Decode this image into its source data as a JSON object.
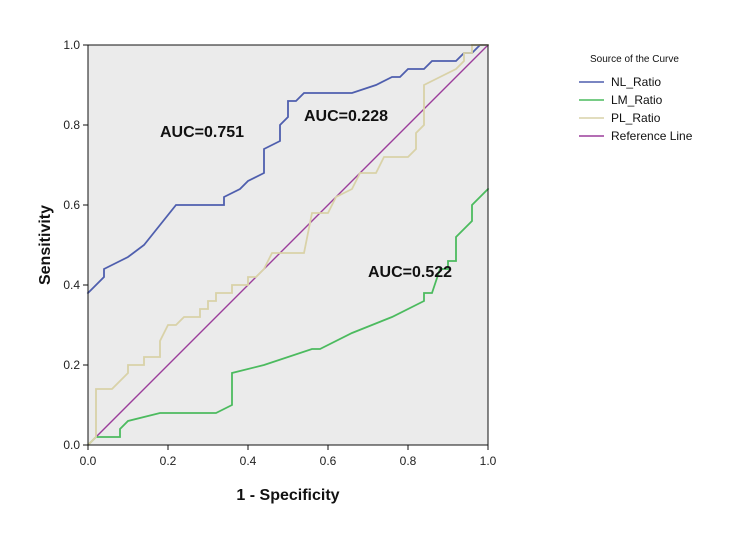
{
  "chart_data": {
    "type": "line",
    "title": "",
    "xlabel": "1 - Specificity",
    "ylabel": "Sensitivity",
    "xlim": [
      0,
      1
    ],
    "ylim": [
      0,
      1
    ],
    "x_ticks": [
      "0.0",
      "0.2",
      "0.4",
      "0.6",
      "0.8",
      "1.0"
    ],
    "y_ticks": [
      "0.0",
      "0.2",
      "0.4",
      "0.6",
      "0.8",
      "1.0"
    ],
    "grid": false,
    "plot_background": "#ebebeb",
    "legend": {
      "title": "Source of the Curve",
      "position": "top-right, outside plot"
    },
    "series": [
      {
        "name": "NL_Ratio",
        "color": "#4f5fae",
        "points": [
          [
            0.0,
            0.38
          ],
          [
            0.02,
            0.4
          ],
          [
            0.04,
            0.42
          ],
          [
            0.04,
            0.44
          ],
          [
            0.06,
            0.45
          ],
          [
            0.1,
            0.47
          ],
          [
            0.14,
            0.5
          ],
          [
            0.18,
            0.55
          ],
          [
            0.22,
            0.6
          ],
          [
            0.24,
            0.6
          ],
          [
            0.34,
            0.6
          ],
          [
            0.34,
            0.62
          ],
          [
            0.38,
            0.64
          ],
          [
            0.4,
            0.66
          ],
          [
            0.44,
            0.68
          ],
          [
            0.44,
            0.74
          ],
          [
            0.48,
            0.76
          ],
          [
            0.48,
            0.8
          ],
          [
            0.5,
            0.82
          ],
          [
            0.5,
            0.86
          ],
          [
            0.52,
            0.86
          ],
          [
            0.54,
            0.88
          ],
          [
            0.66,
            0.88
          ],
          [
            0.72,
            0.9
          ],
          [
            0.76,
            0.92
          ],
          [
            0.78,
            0.92
          ],
          [
            0.8,
            0.94
          ],
          [
            0.84,
            0.94
          ],
          [
            0.86,
            0.96
          ],
          [
            0.92,
            0.96
          ],
          [
            0.94,
            0.98
          ],
          [
            0.96,
            0.98
          ],
          [
            0.98,
            1.0
          ],
          [
            1.0,
            1.0
          ]
        ]
      },
      {
        "name": "LM_Ratio",
        "color": "#4cbb5f",
        "points": [
          [
            0.0,
            0.0
          ],
          [
            0.02,
            0.02
          ],
          [
            0.08,
            0.02
          ],
          [
            0.08,
            0.04
          ],
          [
            0.1,
            0.06
          ],
          [
            0.18,
            0.08
          ],
          [
            0.32,
            0.08
          ],
          [
            0.36,
            0.1
          ],
          [
            0.36,
            0.18
          ],
          [
            0.44,
            0.2
          ],
          [
            0.56,
            0.24
          ],
          [
            0.58,
            0.24
          ],
          [
            0.66,
            0.28
          ],
          [
            0.76,
            0.32
          ],
          [
            0.84,
            0.36
          ],
          [
            0.84,
            0.38
          ],
          [
            0.86,
            0.38
          ],
          [
            0.88,
            0.44
          ],
          [
            0.9,
            0.44
          ],
          [
            0.9,
            0.46
          ],
          [
            0.92,
            0.46
          ],
          [
            0.92,
            0.52
          ],
          [
            0.94,
            0.54
          ],
          [
            0.96,
            0.56
          ],
          [
            0.96,
            0.6
          ],
          [
            1.0,
            0.64
          ]
        ]
      },
      {
        "name": "PL_Ratio",
        "color": "#d9d2a8",
        "points": [
          [
            0.0,
            0.0
          ],
          [
            0.02,
            0.02
          ],
          [
            0.02,
            0.14
          ],
          [
            0.06,
            0.14
          ],
          [
            0.08,
            0.16
          ],
          [
            0.1,
            0.18
          ],
          [
            0.1,
            0.2
          ],
          [
            0.14,
            0.2
          ],
          [
            0.14,
            0.22
          ],
          [
            0.18,
            0.22
          ],
          [
            0.18,
            0.26
          ],
          [
            0.2,
            0.3
          ],
          [
            0.22,
            0.3
          ],
          [
            0.24,
            0.32
          ],
          [
            0.28,
            0.32
          ],
          [
            0.28,
            0.34
          ],
          [
            0.3,
            0.34
          ],
          [
            0.3,
            0.36
          ],
          [
            0.32,
            0.36
          ],
          [
            0.32,
            0.38
          ],
          [
            0.36,
            0.38
          ],
          [
            0.36,
            0.4
          ],
          [
            0.4,
            0.4
          ],
          [
            0.4,
            0.42
          ],
          [
            0.42,
            0.42
          ],
          [
            0.44,
            0.44
          ],
          [
            0.46,
            0.48
          ],
          [
            0.54,
            0.48
          ],
          [
            0.56,
            0.58
          ],
          [
            0.6,
            0.58
          ],
          [
            0.62,
            0.62
          ],
          [
            0.66,
            0.64
          ],
          [
            0.68,
            0.68
          ],
          [
            0.72,
            0.68
          ],
          [
            0.74,
            0.72
          ],
          [
            0.8,
            0.72
          ],
          [
            0.82,
            0.74
          ],
          [
            0.82,
            0.78
          ],
          [
            0.84,
            0.8
          ],
          [
            0.84,
            0.9
          ],
          [
            0.88,
            0.92
          ],
          [
            0.92,
            0.94
          ],
          [
            0.94,
            0.96
          ],
          [
            0.94,
            0.98
          ],
          [
            0.96,
            0.98
          ],
          [
            0.96,
            1.0
          ],
          [
            1.0,
            1.0
          ]
        ]
      },
      {
        "name": "Reference Line",
        "color": "#9b3d9b",
        "points": [
          [
            0,
            0
          ],
          [
            1,
            1
          ]
        ]
      }
    ],
    "annotations": [
      {
        "text": "AUC=0.751",
        "x": 0.18,
        "y": 0.77
      },
      {
        "text": "AUC=0.228",
        "x": 0.54,
        "y": 0.81
      },
      {
        "text": "AUC=0.522",
        "x": 0.7,
        "y": 0.42
      }
    ]
  }
}
